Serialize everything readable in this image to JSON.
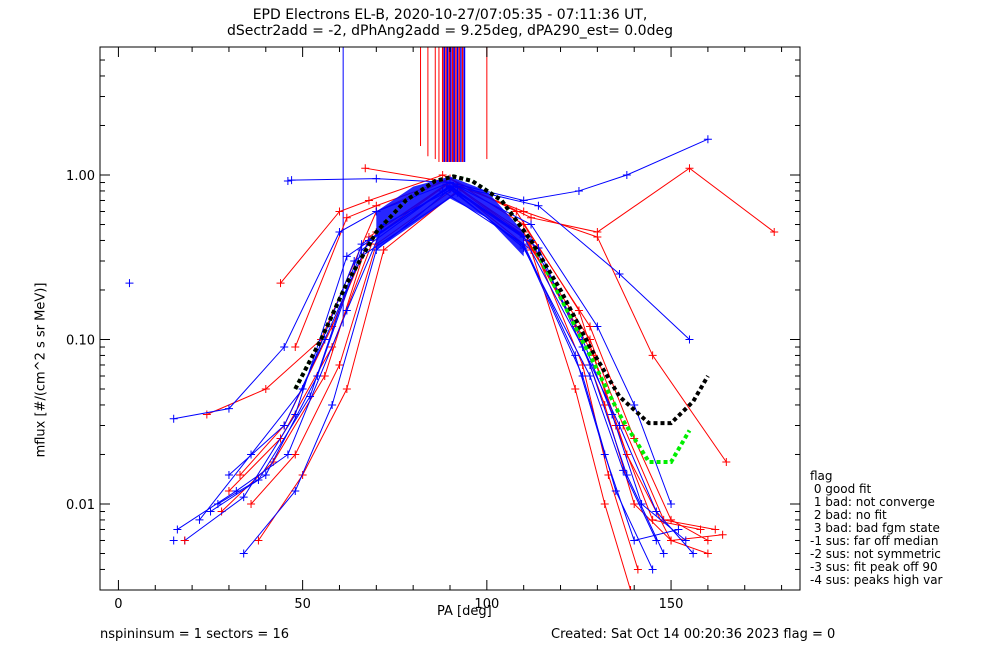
{
  "title": {
    "line1": "EPD Electrons EL-B, 2020-10-27/07:05:35 - 07:11:36 UT,",
    "line2": "dSectr2add = -2, dPhAng2add = 9.25deg, dPA290_est=   0.0deg"
  },
  "footer": {
    "left": "nspininsum =  1  sectors = 16",
    "right": "Created: Sat Oct 14 00:20:36 2023   flag = 0"
  },
  "legend": {
    "title": "flag",
    "items": [
      " 0 good fit",
      " 1 bad: not converge",
      " 2 bad: no fit",
      " 3 bad: bad fgm state",
      "-1 sus: far off median",
      "-2 sus: not symmetric",
      "-3 sus: fit peak off 90",
      "-4 sus: peaks high var"
    ]
  },
  "colors": {
    "red": "#ff0000",
    "blue": "#0000ff",
    "green": "#00ee00",
    "black": "#000000"
  },
  "chart_data": {
    "type": "line",
    "title": "EPD Electrons EL-B, 2020-10-27/07:05:35 - 07:11:36 UT,",
    "xlabel": "PA [deg]",
    "ylabel": "mflux [#/(cm^2 s sr MeV)]",
    "xlim": [
      -5,
      185
    ],
    "ylim": [
      0.003,
      6
    ],
    "yscale": "log",
    "xticks": [
      0,
      50,
      100,
      150
    ],
    "xtick_labels": [
      "0",
      "50",
      "100",
      "150"
    ],
    "yticks": [
      0.01,
      0.1,
      1.0
    ],
    "ytick_labels": [
      "0.01",
      "0.10",
      "1.00"
    ],
    "grid": false,
    "legend_position": "bottom-right outside",
    "series": [
      {
        "color": "red",
        "x": [
          48,
          62,
          70,
          90,
          110,
          128,
          140,
          150,
          160
        ],
        "y": [
          0.09,
          0.55,
          0.65,
          0.95,
          0.5,
          0.12,
          0.025,
          0.008,
          0.006
        ]
      },
      {
        "color": "red",
        "x": [
          44,
          60,
          68,
          88,
          108,
          125,
          135,
          145,
          158
        ],
        "y": [
          0.22,
          0.6,
          0.7,
          1.0,
          0.6,
          0.15,
          0.03,
          0.008,
          0.007
        ]
      },
      {
        "color": "red",
        "x": [
          24,
          40,
          55,
          70,
          90,
          112,
          130,
          155,
          178
        ],
        "y": [
          0.035,
          0.05,
          0.1,
          0.6,
          0.95,
          0.55,
          0.45,
          1.1,
          0.45
        ]
      },
      {
        "color": "red",
        "x": [
          67,
          90,
          110,
          130,
          145,
          165
        ],
        "y": [
          1.1,
          0.9,
          0.6,
          0.42,
          0.08,
          0.018
        ]
      },
      {
        "color": "red",
        "x": [
          33,
          45,
          58,
          68,
          90,
          110,
          124,
          132,
          140,
          150,
          160
        ],
        "y": [
          0.015,
          0.03,
          0.12,
          0.4,
          0.9,
          0.45,
          0.12,
          0.04,
          0.01,
          0.006,
          0.005
        ]
      },
      {
        "color": "red",
        "x": [
          36,
          48,
          60,
          70,
          92,
          112,
          126,
          133,
          141
        ],
        "y": [
          0.01,
          0.02,
          0.07,
          0.38,
          0.85,
          0.4,
          0.07,
          0.015,
          0.004
        ]
      },
      {
        "color": "red",
        "x": [
          38,
          50,
          62,
          72,
          92,
          112,
          124,
          132,
          139
        ],
        "y": [
          0.006,
          0.015,
          0.05,
          0.35,
          0.8,
          0.35,
          0.05,
          0.01,
          0.003
        ]
      },
      {
        "color": "red",
        "x": [
          30,
          44,
          58,
          70,
          90,
          110,
          128,
          137,
          148,
          162
        ],
        "y": [
          0.012,
          0.025,
          0.09,
          0.45,
          0.9,
          0.42,
          0.1,
          0.03,
          0.008,
          0.007
        ]
      },
      {
        "color": "red",
        "x": [
          28,
          42,
          56,
          68,
          89,
          111,
          129,
          138,
          150,
          164
        ],
        "y": [
          0.009,
          0.018,
          0.06,
          0.42,
          0.88,
          0.4,
          0.08,
          0.02,
          0.006,
          0.0065
        ]
      },
      {
        "color": "blue",
        "x": [
          15,
          30,
          45,
          60,
          70,
          90,
          112,
          130,
          140,
          150
        ],
        "y": [
          0.033,
          0.038,
          0.09,
          0.45,
          0.6,
          0.9,
          0.5,
          0.12,
          0.04,
          0.01
        ]
      },
      {
        "color": "blue",
        "x": [
          16,
          32,
          46,
          62,
          72,
          92,
          114,
          136,
          155
        ],
        "y": [
          0.007,
          0.012,
          0.02,
          0.15,
          0.5,
          0.85,
          0.65,
          0.25,
          0.1
        ]
      },
      {
        "color": "blue",
        "x": [
          47,
          70,
          90,
          110,
          125,
          138,
          160
        ],
        "y": [
          0.93,
          0.95,
          0.9,
          0.7,
          0.8,
          1.0,
          1.65
        ]
      },
      {
        "color": "blue",
        "x": [
          30,
          45,
          56,
          68,
          90,
          112,
          126,
          134,
          142,
          154
        ],
        "y": [
          0.015,
          0.03,
          0.1,
          0.4,
          0.85,
          0.4,
          0.1,
          0.035,
          0.01,
          0.006
        ]
      },
      {
        "color": "blue",
        "x": [
          27,
          40,
          54,
          66,
          88,
          110,
          124,
          132,
          140,
          152
        ],
        "y": [
          0.01,
          0.015,
          0.06,
          0.35,
          0.8,
          0.38,
          0.08,
          0.02,
          0.006,
          0.007
        ]
      },
      {
        "color": "blue",
        "x": [
          34,
          48,
          58,
          70,
          90,
          110,
          126,
          135,
          145
        ],
        "y": [
          0.005,
          0.012,
          0.04,
          0.35,
          0.82,
          0.37,
          0.06,
          0.012,
          0.004
        ]
      },
      {
        "color": "blue",
        "x": [
          22,
          36,
          50,
          64,
          92,
          114,
          128,
          138,
          148
        ],
        "y": [
          0.008,
          0.02,
          0.05,
          0.3,
          0.78,
          0.36,
          0.07,
          0.015,
          0.005
        ]
      },
      {
        "color": "blue",
        "x": [
          18,
          34,
          48,
          62,
          90,
          110,
          126,
          136,
          146,
          156
        ],
        "y": [
          0.006,
          0.011,
          0.035,
          0.32,
          0.86,
          0.42,
          0.09,
          0.03,
          0.009,
          0.005
        ]
      },
      {
        "color": "blue",
        "x": [
          25,
          38,
          52,
          66,
          90,
          110,
          128,
          137,
          146
        ],
        "y": [
          0.009,
          0.014,
          0.045,
          0.38,
          0.84,
          0.36,
          0.06,
          0.016,
          0.006
        ]
      }
    ],
    "isolated_points": [
      {
        "color": "blue",
        "x": 3,
        "y": 0.22
      },
      {
        "color": "blue",
        "x": 46,
        "y": 0.92
      },
      {
        "color": "red",
        "x": 18,
        "y": 0.006
      },
      {
        "color": "blue",
        "x": 15,
        "y": 0.006
      }
    ],
    "vertical_lines": [
      {
        "color": "blue",
        "x": 61,
        "y_from": 0.12
      },
      {
        "color": "red",
        "x": 82,
        "y_from": 1.5
      },
      {
        "color": "red",
        "x": 84,
        "y_from": 1.3
      },
      {
        "color": "red",
        "x": 86,
        "y_from": 1.25
      },
      {
        "color": "red",
        "x": 87,
        "y_from": 1.2
      },
      {
        "color": "blue",
        "x": 88,
        "y_from": 1.2
      },
      {
        "color": "blue",
        "x": 89,
        "y_from": 1.2
      },
      {
        "color": "red",
        "x": 90,
        "y_from": 1.2
      },
      {
        "color": "blue",
        "x": 91,
        "y_from": 1.2
      },
      {
        "color": "blue",
        "x": 92,
        "y_from": 1.2
      },
      {
        "color": "red",
        "x": 93,
        "y_from": 1.2
      },
      {
        "color": "blue",
        "x": 94,
        "y_from": 1.2
      },
      {
        "color": "red",
        "x": 100,
        "y_from": 1.25
      }
    ],
    "fit_curves": [
      {
        "color": "green",
        "style": "dashed",
        "x": [
          48,
          55,
          62,
          70,
          78,
          86,
          91,
          96,
          104,
          112,
          120,
          128,
          136,
          144,
          150,
          155
        ],
        "y": [
          0.05,
          0.1,
          0.22,
          0.45,
          0.7,
          0.92,
          0.98,
          0.92,
          0.7,
          0.4,
          0.18,
          0.08,
          0.035,
          0.018,
          0.018,
          0.028
        ]
      },
      {
        "color": "black",
        "style": "dashed",
        "x": [
          48,
          55,
          62,
          70,
          78,
          86,
          91,
          96,
          104,
          112,
          120,
          128,
          136,
          144,
          150,
          156,
          160
        ],
        "y": [
          0.05,
          0.1,
          0.22,
          0.45,
          0.7,
          0.92,
          0.98,
          0.92,
          0.7,
          0.4,
          0.2,
          0.09,
          0.045,
          0.031,
          0.031,
          0.042,
          0.06
        ]
      }
    ]
  }
}
